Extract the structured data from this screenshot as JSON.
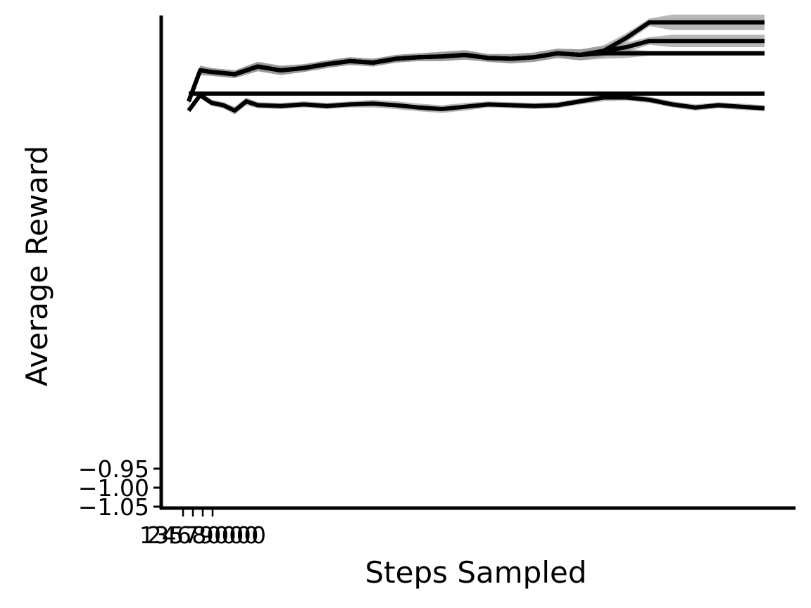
{
  "chart_data": {
    "type": "line",
    "title": "",
    "xlabel": "Steps Sampled",
    "ylabel": "Average Reward",
    "yticks": [
      {
        "value": -0.95,
        "label": "−0.95"
      },
      {
        "value": -1.0,
        "label": "−1.00"
      },
      {
        "value": -1.05,
        "label": "−1.05"
      }
    ],
    "xtick_labels": [
      "1",
      "2",
      "3",
      "4",
      "5",
      "6",
      "7",
      "8",
      "9",
      "0",
      "0",
      "0",
      "0",
      "0",
      "0",
      "0"
    ],
    "xlim": [
      0,
      1000000
    ],
    "ylim": [
      -1.05,
      10.8
    ],
    "grid": false,
    "legend": "none",
    "colors": {
      "line": "#000000",
      "band": "#999999",
      "axis": "#000000"
    },
    "series": [
      {
        "x": [
          0,
          20000,
          40000,
          80000,
          120000,
          160000,
          200000,
          240000,
          280000,
          320000,
          360000,
          400000,
          440000,
          480000,
          520000,
          560000,
          600000,
          640000,
          680000,
          720000,
          760000,
          800000,
          840000,
          880000,
          920000,
          960000,
          1000000
        ],
        "y": [
          9.9,
          10.3,
          10.28,
          10.25,
          10.35,
          10.3,
          10.33,
          10.38,
          10.42,
          10.4,
          10.45,
          10.47,
          10.48,
          10.5,
          10.46,
          10.45,
          10.47,
          10.52,
          10.5,
          10.52,
          10.52,
          10.52,
          10.52,
          10.52,
          10.52,
          10.52,
          10.52
        ],
        "band": [
          0.05,
          0.06,
          0.05,
          0.05,
          0.06,
          0.06,
          0.05,
          0.05,
          0.05,
          0.05,
          0.05,
          0.05,
          0.06,
          0.06,
          0.05,
          0.06,
          0.06,
          0.06,
          0.07,
          0.07,
          0.06,
          0.03,
          0.03,
          0.03,
          0.03,
          0.03,
          0.03
        ]
      },
      {
        "x": [
          0,
          20000,
          40000,
          80000,
          120000,
          160000,
          200000,
          240000,
          280000,
          320000,
          360000,
          400000,
          440000,
          480000,
          520000,
          560000,
          600000,
          640000,
          680000,
          720000,
          760000,
          800000,
          840000,
          880000,
          920000,
          960000,
          1000000
        ],
        "y": [
          9.9,
          10.3,
          10.28,
          10.25,
          10.35,
          10.3,
          10.33,
          10.38,
          10.42,
          10.4,
          10.45,
          10.47,
          10.48,
          10.5,
          10.46,
          10.45,
          10.47,
          10.52,
          10.5,
          10.55,
          10.72,
          10.92,
          10.92,
          10.92,
          10.92,
          10.92,
          10.92
        ],
        "band": [
          0.05,
          0.06,
          0.05,
          0.05,
          0.06,
          0.06,
          0.05,
          0.05,
          0.05,
          0.05,
          0.05,
          0.05,
          0.06,
          0.06,
          0.05,
          0.06,
          0.06,
          0.06,
          0.07,
          0.07,
          0.06,
          0.05,
          0.1,
          0.1,
          0.1,
          0.1,
          0.1
        ]
      },
      {
        "x": [
          0,
          20000,
          40000,
          80000,
          120000,
          160000,
          200000,
          240000,
          280000,
          320000,
          360000,
          400000,
          440000,
          480000,
          520000,
          560000,
          600000,
          640000,
          680000,
          720000,
          760000,
          800000,
          840000,
          880000,
          920000,
          960000,
          1000000
        ],
        "y": [
          9.9,
          10.3,
          10.28,
          10.25,
          10.35,
          10.3,
          10.33,
          10.38,
          10.42,
          10.4,
          10.45,
          10.47,
          10.48,
          10.5,
          10.46,
          10.45,
          10.47,
          10.52,
          10.5,
          10.55,
          10.6,
          10.68,
          10.68,
          10.68,
          10.68,
          10.68,
          10.68
        ],
        "band": [
          0.05,
          0.06,
          0.05,
          0.05,
          0.06,
          0.06,
          0.05,
          0.05,
          0.05,
          0.05,
          0.05,
          0.05,
          0.06,
          0.06,
          0.05,
          0.06,
          0.06,
          0.06,
          0.07,
          0.07,
          0.06,
          0.05,
          0.08,
          0.08,
          0.08,
          0.08,
          0.08
        ]
      },
      {
        "x": [
          0,
          1000000
        ],
        "y": [
          10.0,
          10.0
        ],
        "band": [
          0.0,
          0.0
        ]
      },
      {
        "x": [
          0,
          20000,
          40000,
          60000,
          80000,
          100000,
          120000,
          160000,
          200000,
          240000,
          280000,
          320000,
          360000,
          400000,
          440000,
          480000,
          520000,
          560000,
          600000,
          640000,
          680000,
          720000,
          760000,
          800000,
          840000,
          880000,
          920000,
          960000,
          1000000
        ],
        "y": [
          9.78,
          9.98,
          9.88,
          9.85,
          9.78,
          9.9,
          9.85,
          9.84,
          9.86,
          9.84,
          9.86,
          9.87,
          9.85,
          9.82,
          9.8,
          9.83,
          9.86,
          9.85,
          9.84,
          9.85,
          9.9,
          9.95,
          9.95,
          9.92,
          9.86,
          9.82,
          9.85,
          9.83,
          9.81
        ],
        "band": [
          0.03,
          0.04,
          0.04,
          0.04,
          0.05,
          0.05,
          0.04,
          0.04,
          0.04,
          0.04,
          0.04,
          0.05,
          0.05,
          0.05,
          0.05,
          0.05,
          0.04,
          0.04,
          0.04,
          0.04,
          0.04,
          0.05,
          0.04,
          0.04,
          0.04,
          0.04,
          0.04,
          0.04,
          0.04
        ]
      }
    ]
  }
}
